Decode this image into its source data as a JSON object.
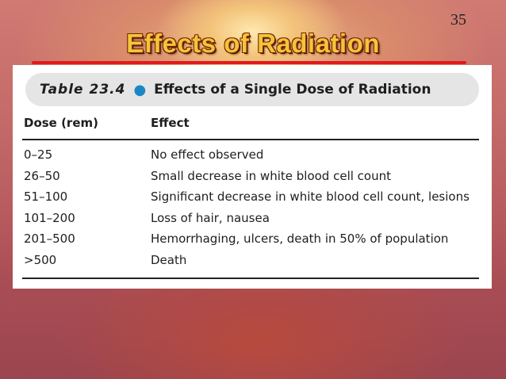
{
  "slide": {
    "number": "35",
    "title": "Effects of Radiation"
  },
  "table": {
    "caption_label": "Table 23.4",
    "caption_title": "Effects of a Single Dose of Radiation",
    "headers": {
      "dose": "Dose (rem)",
      "effect": "Effect"
    },
    "rows": [
      {
        "dose": "0–25",
        "effect": "No effect observed"
      },
      {
        "dose": "26–50",
        "effect": "Small decrease in white blood cell count"
      },
      {
        "dose": "51–100",
        "effect": "Significant decrease in white blood cell count, lesions"
      },
      {
        "dose": "101–200",
        "effect": "Loss of hair, nausea"
      },
      {
        "dose": "201–500",
        "effect": "Hemorrhaging, ulcers, death in 50% of population"
      },
      {
        "dose": ">500",
        "effect": "Death"
      }
    ]
  },
  "colors": {
    "title": "#f2c53a",
    "rule": "#e01b1b",
    "caption_dot": "#1a86c6"
  }
}
